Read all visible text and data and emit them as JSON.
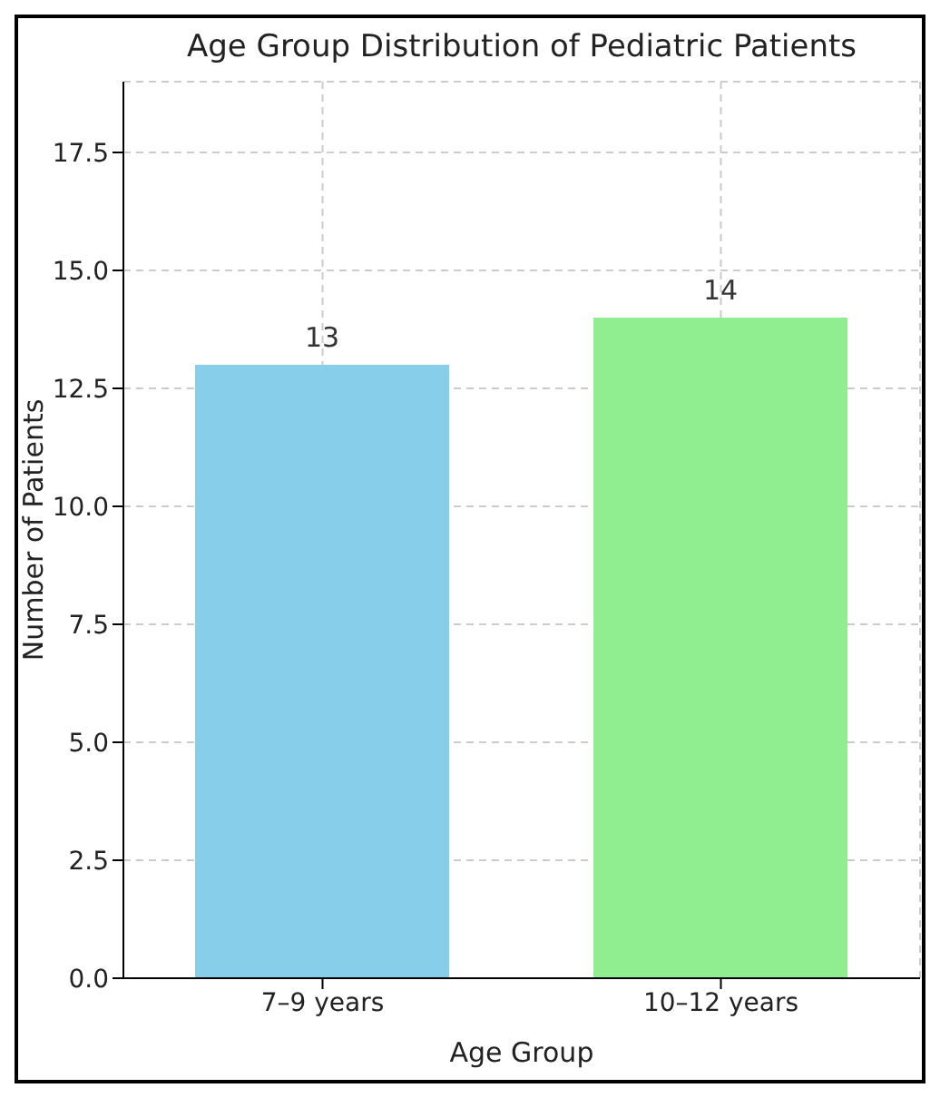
{
  "chart_data": {
    "type": "bar",
    "title": "Age Group Distribution of Pediatric Patients",
    "xlabel": "Age Group",
    "ylabel": "Number of Patients",
    "categories": [
      "7–9 years",
      "10–12 years"
    ],
    "values": [
      13,
      14
    ],
    "colors": [
      "#87ceeb",
      "#90ee90"
    ],
    "ylim": [
      0,
      19
    ],
    "yticks": [
      {
        "value": 0,
        "label": "0.0"
      },
      {
        "value": 2.5,
        "label": "2.5"
      },
      {
        "value": 5,
        "label": "5.0"
      },
      {
        "value": 7.5,
        "label": "7.5"
      },
      {
        "value": 10,
        "label": "10.0"
      },
      {
        "value": 12.5,
        "label": "12.5"
      },
      {
        "value": 15,
        "label": "15.0"
      },
      {
        "value": 17.5,
        "label": "17.5"
      }
    ],
    "grid": true,
    "data_labels": true
  }
}
